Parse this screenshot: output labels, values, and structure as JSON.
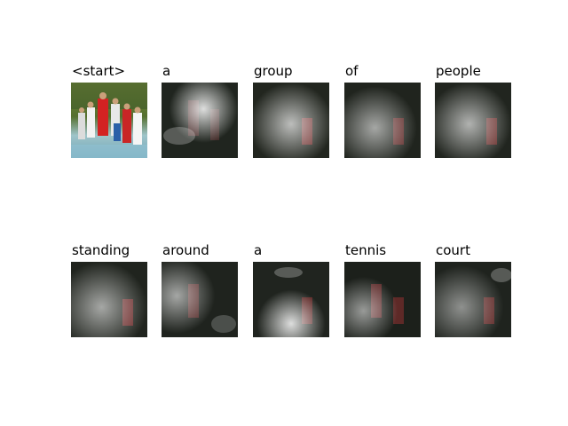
{
  "figure": {
    "rows": [
      [
        "<start>",
        "a",
        "group",
        "of",
        "people"
      ],
      [
        "standing",
        "around",
        "a",
        "tennis",
        "court"
      ]
    ]
  }
}
